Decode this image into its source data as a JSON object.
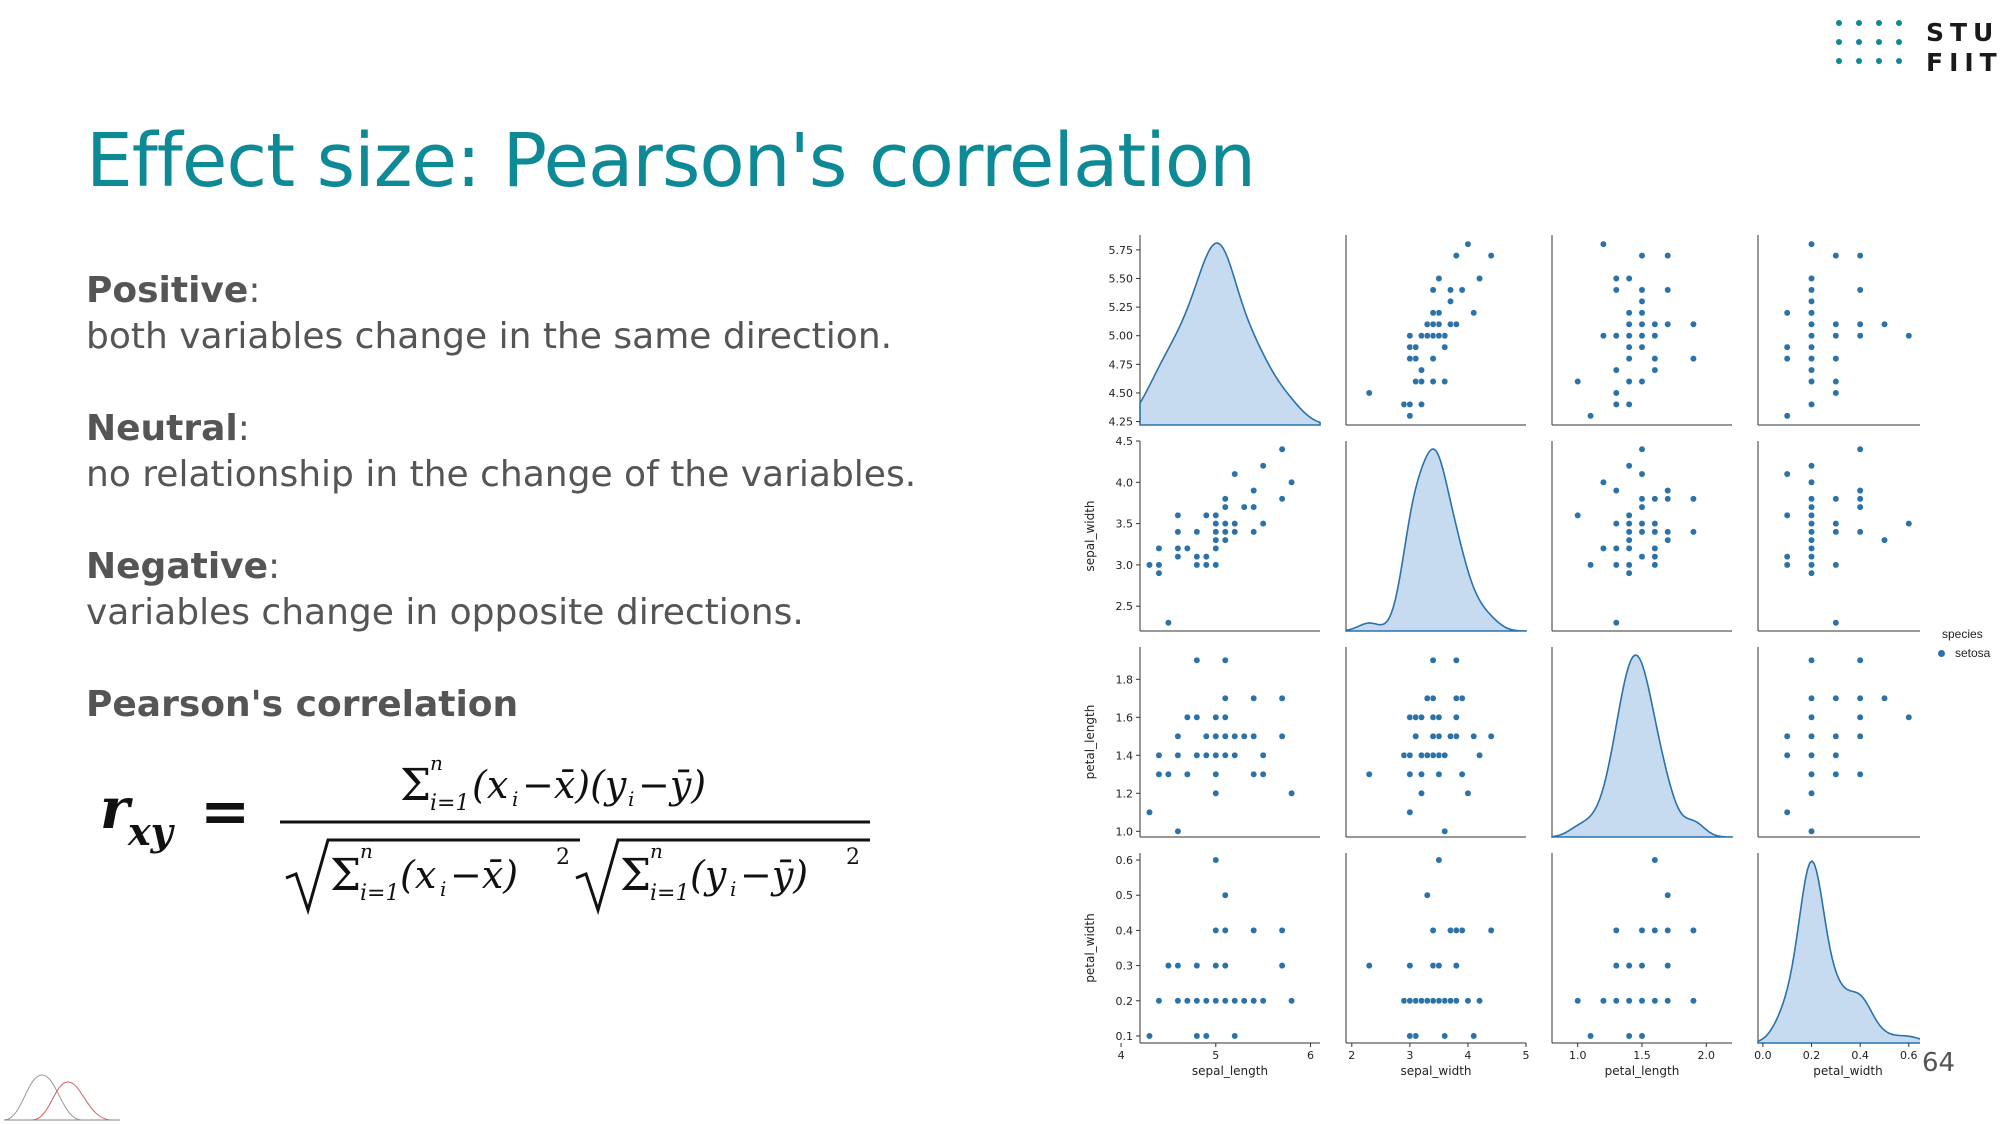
{
  "logo": {
    "line1": "STU",
    "line2": "FIIT",
    "color": "#0d8a96"
  },
  "title": "Effect size: Pearson's correlation",
  "definitions": [
    {
      "term": "Positive",
      "text": "both variables change in the same direction."
    },
    {
      "term": "Neutral",
      "text": "no relationship in the change of the variables."
    },
    {
      "term": "Negative",
      "text": "variables change in opposite directions."
    }
  ],
  "formula_heading": "Pearson's correlation",
  "page_number": "64",
  "accent_color": "#0d8a96",
  "chart_data": {
    "type": "scatter",
    "subtype": "pairplot",
    "variables": [
      "sepal_length",
      "sepal_width",
      "petal_length",
      "petal_width"
    ],
    "legend": {
      "title": "species",
      "items": [
        "setosa"
      ],
      "placement": "right"
    },
    "point_color": "#2b72a8",
    "axes": {
      "sepal_length": {
        "lim": [
          4.2,
          6.1
        ],
        "ticks": [
          "4",
          "5",
          "6"
        ],
        "yticks": [
          "4.25",
          "4.50",
          "4.75",
          "5.00",
          "5.25",
          "5.50",
          "5.75"
        ],
        "ylim": [
          4.22,
          5.88
        ]
      },
      "sepal_width": {
        "lim": [
          1.9,
          5.0
        ],
        "ticks": [
          "2",
          "3",
          "4",
          "5"
        ],
        "yticks": [
          "2.5",
          "3.0",
          "3.5",
          "4.0",
          "4.5"
        ],
        "ylim": [
          2.2,
          4.5
        ]
      },
      "petal_length": {
        "lim": [
          0.8,
          2.2
        ],
        "ticks": [
          "1.0",
          "1.5",
          "2.0"
        ],
        "yticks": [
          "1.0",
          "1.2",
          "1.4",
          "1.6",
          "1.8"
        ],
        "ylim": [
          0.97,
          1.97
        ]
      },
      "petal_width": {
        "lim": [
          -0.02,
          0.72
        ],
        "ticks": [
          "0.0",
          "0.2",
          "0.4",
          "0.6"
        ],
        "yticks": [
          "0.1",
          "0.2",
          "0.3",
          "0.4",
          "0.5",
          "0.6"
        ],
        "ylim": [
          0.08,
          0.62
        ]
      }
    },
    "points": [
      [
        5.1,
        3.5,
        1.4,
        0.2
      ],
      [
        4.9,
        3.0,
        1.4,
        0.2
      ],
      [
        4.7,
        3.2,
        1.3,
        0.2
      ],
      [
        4.6,
        3.1,
        1.5,
        0.2
      ],
      [
        5.0,
        3.6,
        1.4,
        0.2
      ],
      [
        5.4,
        3.9,
        1.7,
        0.4
      ],
      [
        4.6,
        3.4,
        1.4,
        0.3
      ],
      [
        5.0,
        3.4,
        1.5,
        0.2
      ],
      [
        4.4,
        2.9,
        1.4,
        0.2
      ],
      [
        4.9,
        3.1,
        1.5,
        0.1
      ],
      [
        5.4,
        3.7,
        1.5,
        0.2
      ],
      [
        4.8,
        3.4,
        1.6,
        0.2
      ],
      [
        4.8,
        3.0,
        1.4,
        0.1
      ],
      [
        4.3,
        3.0,
        1.1,
        0.1
      ],
      [
        5.8,
        4.0,
        1.2,
        0.2
      ],
      [
        5.7,
        4.4,
        1.5,
        0.4
      ],
      [
        5.4,
        3.9,
        1.3,
        0.4
      ],
      [
        5.1,
        3.5,
        1.4,
        0.3
      ],
      [
        5.7,
        3.8,
        1.7,
        0.3
      ],
      [
        5.1,
        3.8,
        1.5,
        0.3
      ],
      [
        5.4,
        3.4,
        1.7,
        0.2
      ],
      [
        5.1,
        3.7,
        1.5,
        0.4
      ],
      [
        4.6,
        3.6,
        1.0,
        0.2
      ],
      [
        5.1,
        3.3,
        1.7,
        0.5
      ],
      [
        4.8,
        3.4,
        1.9,
        0.2
      ],
      [
        5.0,
        3.0,
        1.6,
        0.2
      ],
      [
        5.0,
        3.4,
        1.6,
        0.4
      ],
      [
        5.2,
        3.5,
        1.5,
        0.2
      ],
      [
        5.2,
        3.4,
        1.4,
        0.2
      ],
      [
        4.7,
        3.2,
        1.6,
        0.2
      ],
      [
        4.8,
        3.1,
        1.6,
        0.2
      ],
      [
        5.4,
        3.4,
        1.5,
        0.4
      ],
      [
        5.2,
        4.1,
        1.5,
        0.1
      ],
      [
        5.5,
        4.2,
        1.4,
        0.2
      ],
      [
        4.9,
        3.1,
        1.5,
        0.2
      ],
      [
        5.0,
        3.2,
        1.2,
        0.2
      ],
      [
        5.5,
        3.5,
        1.3,
        0.2
      ],
      [
        4.9,
        3.6,
        1.4,
        0.1
      ],
      [
        4.4,
        3.0,
        1.3,
        0.2
      ],
      [
        5.1,
        3.4,
        1.5,
        0.2
      ],
      [
        5.0,
        3.5,
        1.3,
        0.3
      ],
      [
        4.5,
        2.3,
        1.3,
        0.3
      ],
      [
        4.4,
        3.2,
        1.3,
        0.2
      ],
      [
        5.0,
        3.5,
        1.6,
        0.6
      ],
      [
        5.1,
        3.8,
        1.9,
        0.4
      ],
      [
        4.8,
        3.0,
        1.4,
        0.3
      ],
      [
        5.1,
        3.8,
        1.6,
        0.2
      ],
      [
        4.6,
        3.2,
        1.4,
        0.2
      ],
      [
        5.3,
        3.7,
        1.5,
        0.2
      ],
      [
        5.0,
        3.3,
        1.4,
        0.2
      ]
    ]
  }
}
